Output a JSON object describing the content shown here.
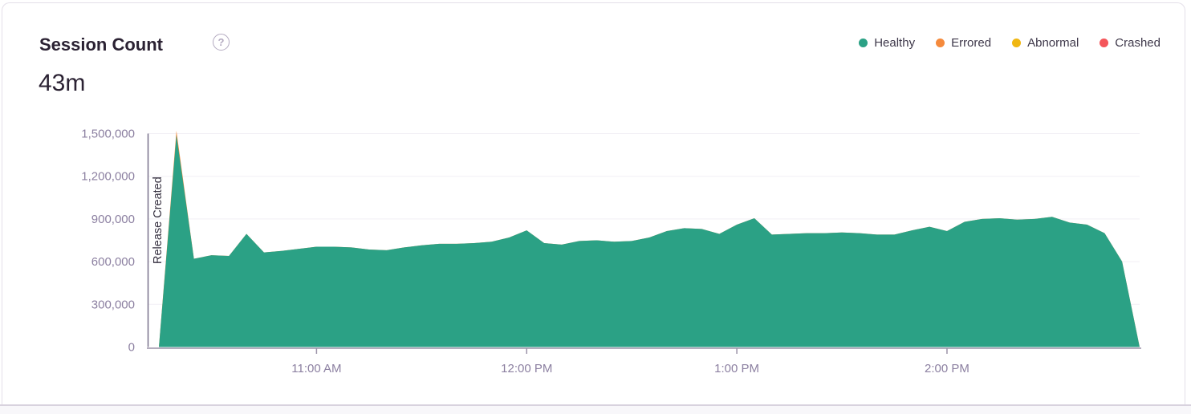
{
  "card": {
    "title": "Session Count",
    "help_icon": "?",
    "total": "43m"
  },
  "legend": {
    "items": [
      {
        "label": "Healthy",
        "color": "#2ba185"
      },
      {
        "label": "Errored",
        "color": "#f58a3c"
      },
      {
        "label": "Abnormal",
        "color": "#f0b712"
      },
      {
        "label": "Crashed",
        "color": "#f4555a"
      }
    ]
  },
  "chart_data": {
    "type": "area",
    "title": "Session Count",
    "total_sessions": "43m",
    "stacked": true,
    "grid": true,
    "legend_position": "top-right",
    "x_axis": {
      "tick_labels": [
        "11:00 AM",
        "12:00 PM",
        "1:00 PM",
        "2:00 PM"
      ],
      "tick_indices": [
        9,
        21,
        33,
        45
      ],
      "interval_minutes_between_points": 5
    },
    "y_axis": {
      "tick_labels": [
        "0",
        "300,000",
        "600,000",
        "900,000",
        "1,200,000",
        "1,500,000"
      ],
      "tick_values": [
        0,
        300000,
        600000,
        900000,
        1200000,
        1500000
      ],
      "ylim": [
        0,
        1500000
      ]
    },
    "annotation": {
      "label": "Release Created",
      "at_index": 0
    },
    "series": [
      {
        "name": "Healthy",
        "color": "#2ba185",
        "values": [
          0,
          1490000,
          620000,
          645000,
          640000,
          795000,
          665000,
          675000,
          690000,
          705000,
          705000,
          700000,
          685000,
          680000,
          700000,
          715000,
          725000,
          725000,
          730000,
          740000,
          770000,
          820000,
          730000,
          720000,
          745000,
          750000,
          740000,
          745000,
          770000,
          815000,
          835000,
          830000,
          795000,
          860000,
          905000,
          790000,
          795000,
          800000,
          800000,
          805000,
          800000,
          790000,
          790000,
          820000,
          845000,
          815000,
          880000,
          900000,
          905000,
          895000,
          900000,
          915000,
          875000,
          860000,
          800000,
          600000,
          0
        ]
      },
      {
        "name": "Errored",
        "color": "#f58a3c",
        "values": [
          0,
          30000,
          0,
          0,
          0,
          0,
          0,
          0,
          0,
          0,
          0,
          0,
          0,
          0,
          0,
          0,
          0,
          0,
          0,
          0,
          0,
          0,
          0,
          0,
          0,
          0,
          0,
          0,
          0,
          0,
          0,
          0,
          0,
          0,
          0,
          0,
          0,
          0,
          0,
          0,
          0,
          0,
          0,
          0,
          0,
          0,
          0,
          0,
          0,
          0,
          0,
          0,
          0,
          0,
          0,
          0,
          0
        ]
      },
      {
        "name": "Abnormal",
        "color": "#f0b712",
        "values": [],
        "values_note": "approximately 0 throughout; not visible at this scale"
      },
      {
        "name": "Crashed",
        "color": "#f4555a",
        "values": [],
        "values_note": "approximately 0 throughout; not visible at this scale"
      }
    ]
  },
  "style": {
    "card_border": "#e4dfe9",
    "divider": "#d8d2de",
    "strip_bg": "#f8f7fa",
    "title_color": "#2b2233",
    "axis_text": "#8c80a1",
    "legend_text": "#3e384a",
    "grid_line": "#f2eff5",
    "axis_line": "#9b92a8",
    "release_line": "#79718a",
    "release_text": "#363140",
    "help_icon_color": "#b3aac0"
  }
}
